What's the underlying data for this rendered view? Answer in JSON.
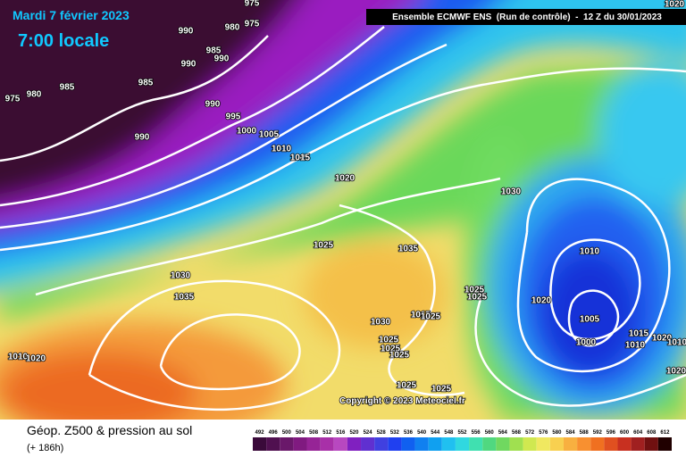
{
  "header": {
    "date": "Mardi 7 février 2023",
    "time": "7:00 locale",
    "model": "Ensemble ECMWF ENS  (Run de contrôle)  -  12 Z du 30/01/2023"
  },
  "map": {
    "isobar_labels": [
      975,
      975,
      980,
      990,
      985,
      990,
      990,
      975,
      980,
      985,
      985,
      990,
      995,
      1000,
      1005,
      990,
      1010,
      1015,
      1020,
      1030,
      1025,
      1035,
      1010,
      1030,
      1035,
      1025,
      1025,
      1020,
      1030,
      1015,
      1025,
      1005,
      1000,
      1015,
      1010,
      1020,
      1010,
      1025,
      1025,
      1025,
      1010,
      1020,
      1020,
      1025,
      1025,
      1020
    ],
    "copyright": "Copyright © 2023 Meteociel.fr"
  },
  "footer": {
    "title": "Géop. Z500 & pression au sol",
    "lead": "(+ 186h)",
    "scale": [
      492,
      496,
      500,
      504,
      508,
      512,
      516,
      520,
      524,
      528,
      532,
      536,
      540,
      544,
      548,
      552,
      556,
      560,
      564,
      568,
      572,
      576,
      580,
      584,
      588,
      592,
      596,
      600,
      604,
      608,
      612
    ]
  }
}
